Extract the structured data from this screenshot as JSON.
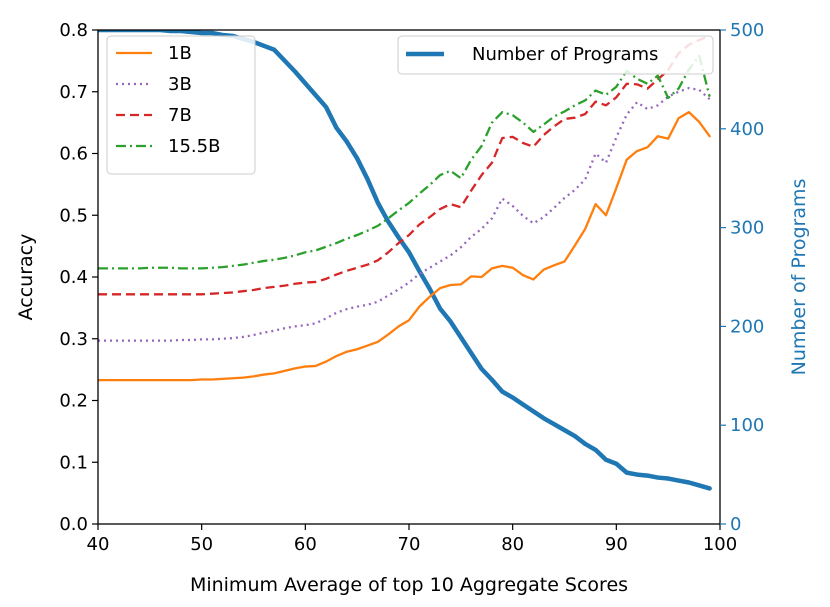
{
  "chart_data": {
    "type": "line",
    "title": "",
    "xlabel": "Minimum Average of top 10 Aggregate Scores",
    "ylabel": "Accuracy",
    "y2label": "Number of Programs",
    "xlim": [
      40,
      100
    ],
    "ylim": [
      0,
      0.8
    ],
    "y2lim": [
      0,
      500
    ],
    "xticks": [
      "40",
      "50",
      "60",
      "70",
      "80",
      "90",
      "100"
    ],
    "yticks": [
      "0.0",
      "0.1",
      "0.2",
      "0.3",
      "0.4",
      "0.5",
      "0.6",
      "0.7",
      "0.8"
    ],
    "y2ticks": [
      "0",
      "100",
      "200",
      "300",
      "400",
      "500"
    ],
    "grid": false,
    "legend_left_position": "top-left",
    "legend_right_position": "top-right",
    "x": [
      40,
      41,
      42,
      43,
      44,
      45,
      46,
      47,
      48,
      49,
      50,
      51,
      52,
      53,
      54,
      55,
      56,
      57,
      58,
      59,
      60,
      61,
      62,
      63,
      64,
      65,
      66,
      67,
      68,
      69,
      70,
      71,
      72,
      73,
      74,
      75,
      76,
      77,
      78,
      79,
      80,
      81,
      82,
      83,
      84,
      85,
      86,
      87,
      88,
      89,
      90,
      91,
      92,
      93,
      94,
      95,
      96,
      97,
      98,
      99
    ],
    "series": [
      {
        "name": "1B",
        "axis": "left",
        "color": "#ff7f0e",
        "style": "solid",
        "values": [
          0.233,
          0.233,
          0.233,
          0.233,
          0.233,
          0.233,
          0.233,
          0.233,
          0.233,
          0.233,
          0.234,
          0.234,
          0.235,
          0.236,
          0.237,
          0.239,
          0.242,
          0.244,
          0.248,
          0.252,
          0.255,
          0.256,
          0.263,
          0.272,
          0.279,
          0.283,
          0.289,
          0.295,
          0.307,
          0.32,
          0.33,
          0.352,
          0.368,
          0.382,
          0.387,
          0.388,
          0.401,
          0.4,
          0.414,
          0.418,
          0.415,
          0.403,
          0.396,
          0.412,
          0.419,
          0.425,
          0.451,
          0.478,
          0.518,
          0.5,
          0.544,
          0.59,
          0.604,
          0.61,
          0.628,
          0.624,
          0.657,
          0.667,
          0.651,
          0.628
        ]
      },
      {
        "name": "3B",
        "axis": "left",
        "color": "#9467bd",
        "style": "dotted",
        "values": [
          0.297,
          0.297,
          0.297,
          0.297,
          0.297,
          0.297,
          0.297,
          0.297,
          0.298,
          0.298,
          0.299,
          0.299,
          0.3,
          0.301,
          0.303,
          0.306,
          0.31,
          0.313,
          0.317,
          0.32,
          0.322,
          0.325,
          0.333,
          0.342,
          0.348,
          0.352,
          0.355,
          0.36,
          0.37,
          0.38,
          0.391,
          0.405,
          0.415,
          0.425,
          0.435,
          0.448,
          0.465,
          0.478,
          0.495,
          0.527,
          0.515,
          0.499,
          0.487,
          0.497,
          0.512,
          0.528,
          0.541,
          0.558,
          0.6,
          0.585,
          0.626,
          0.663,
          0.683,
          0.672,
          0.678,
          0.692,
          0.7,
          0.706,
          0.703,
          0.688
        ]
      },
      {
        "name": "7B",
        "axis": "left",
        "color": "#d62728",
        "style": "dashed",
        "values": [
          0.372,
          0.372,
          0.372,
          0.372,
          0.372,
          0.372,
          0.372,
          0.372,
          0.372,
          0.372,
          0.372,
          0.373,
          0.374,
          0.375,
          0.377,
          0.379,
          0.382,
          0.384,
          0.386,
          0.389,
          0.391,
          0.392,
          0.397,
          0.404,
          0.41,
          0.415,
          0.42,
          0.427,
          0.44,
          0.455,
          0.468,
          0.485,
          0.497,
          0.51,
          0.518,
          0.513,
          0.54,
          0.565,
          0.585,
          0.625,
          0.627,
          0.617,
          0.611,
          0.63,
          0.644,
          0.656,
          0.658,
          0.664,
          0.684,
          0.678,
          0.691,
          0.713,
          0.712,
          0.705,
          0.72,
          0.735,
          0.762,
          0.776,
          0.784,
          0.79
        ]
      },
      {
        "name": "15.5B",
        "axis": "left",
        "color": "#2ca02c",
        "style": "dashdot",
        "values": [
          0.414,
          0.414,
          0.414,
          0.414,
          0.414,
          0.415,
          0.415,
          0.415,
          0.414,
          0.414,
          0.414,
          0.415,
          0.416,
          0.418,
          0.42,
          0.423,
          0.426,
          0.428,
          0.431,
          0.435,
          0.44,
          0.443,
          0.449,
          0.455,
          0.462,
          0.468,
          0.475,
          0.483,
          0.495,
          0.508,
          0.52,
          0.535,
          0.549,
          0.565,
          0.572,
          0.56,
          0.59,
          0.612,
          0.65,
          0.667,
          0.662,
          0.65,
          0.635,
          0.647,
          0.66,
          0.668,
          0.678,
          0.686,
          0.702,
          0.695,
          0.708,
          0.734,
          0.721,
          0.713,
          0.726,
          0.69,
          0.705,
          0.736,
          0.758,
          0.692
        ]
      },
      {
        "name": "Number of Programs",
        "axis": "right",
        "color": "#1f77b4",
        "style": "solid",
        "values": [
          500,
          500,
          500,
          500,
          500,
          500,
          500,
          499,
          499,
          498,
          497,
          497,
          495,
          494,
          491,
          488,
          484,
          480,
          469,
          458,
          446,
          434,
          422,
          401,
          387,
          370,
          349,
          325,
          306,
          290,
          275,
          256,
          238,
          218,
          205,
          189,
          173,
          157,
          146,
          134,
          128,
          121,
          114,
          107,
          101,
          95,
          89,
          81,
          75,
          65,
          61,
          52,
          50,
          49,
          47,
          46,
          44,
          42,
          39,
          36
        ]
      }
    ]
  }
}
